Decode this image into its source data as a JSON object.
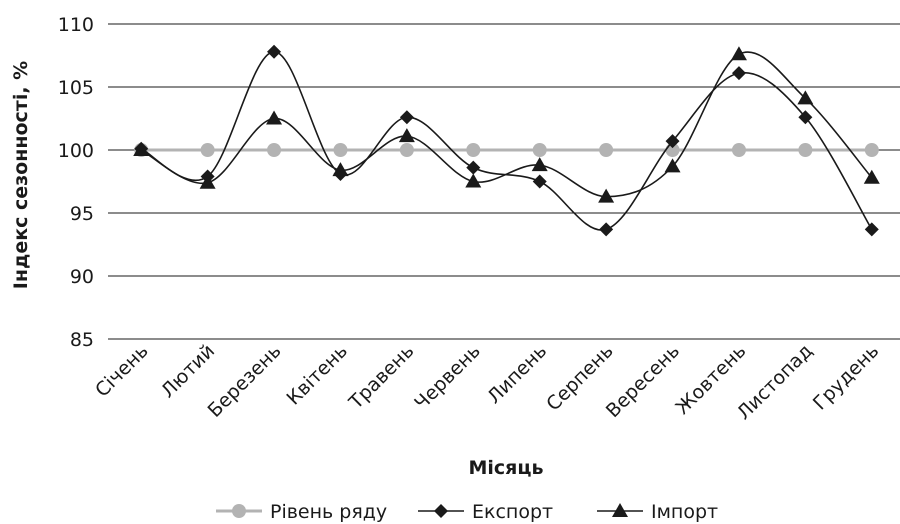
{
  "chart_data": {
    "type": "line",
    "title": "",
    "xlabel": "Місяць",
    "ylabel": "Індекс сезонності, %",
    "ylim": [
      85,
      110
    ],
    "yticks": [
      85,
      90,
      95,
      100,
      105,
      110
    ],
    "grid": true,
    "legend_position": "bottom",
    "categories": [
      "Січень",
      "Лютий",
      "Березень",
      "Квітень",
      "Травень",
      "Червень",
      "Липень",
      "Серпень",
      "Вересень",
      "Жовтень",
      "Листопад",
      "Грудень"
    ],
    "series": [
      {
        "name": "Рівень ряду",
        "marker": "circle",
        "color": "#b3b3b3",
        "smooth": false,
        "values": [
          100,
          100,
          100,
          100,
          100,
          100,
          100,
          100,
          100,
          100,
          100,
          100
        ]
      },
      {
        "name": "Експорт",
        "marker": "diamond",
        "color": "#1a1a1a",
        "smooth": true,
        "values": [
          100.1,
          97.9,
          107.8,
          98.1,
          102.6,
          98.6,
          97.5,
          93.7,
          100.7,
          106.1,
          102.6,
          93.7
        ]
      },
      {
        "name": "Імпорт",
        "marker": "triangle",
        "color": "#1a1a1a",
        "smooth": true,
        "values": [
          100.0,
          97.4,
          102.5,
          98.4,
          101.1,
          97.5,
          98.8,
          96.3,
          98.7,
          107.6,
          104.1,
          97.8
        ]
      }
    ]
  }
}
